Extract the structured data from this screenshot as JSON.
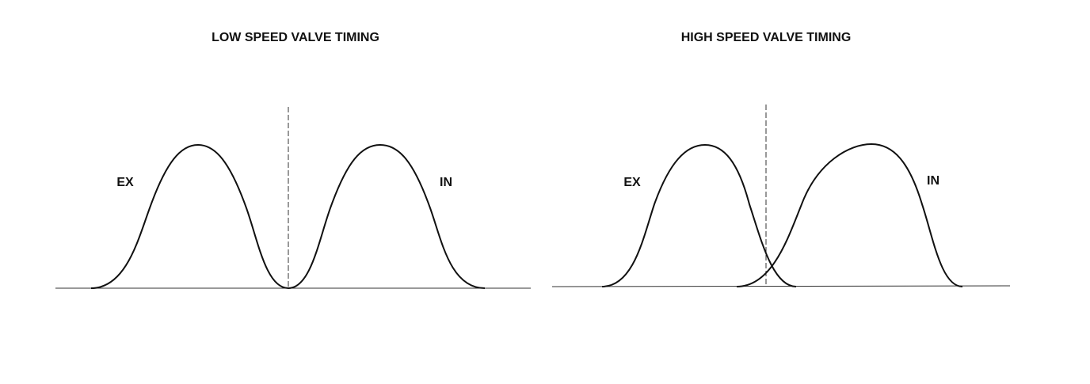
{
  "diagrams": [
    {
      "title": "LOW SPEED VALVE TIMING",
      "labels": [
        "EX",
        "IN"
      ]
    },
    {
      "title": "HIGH SPEED VALVE TIMING",
      "labels": [
        "EX",
        "IN"
      ]
    }
  ]
}
